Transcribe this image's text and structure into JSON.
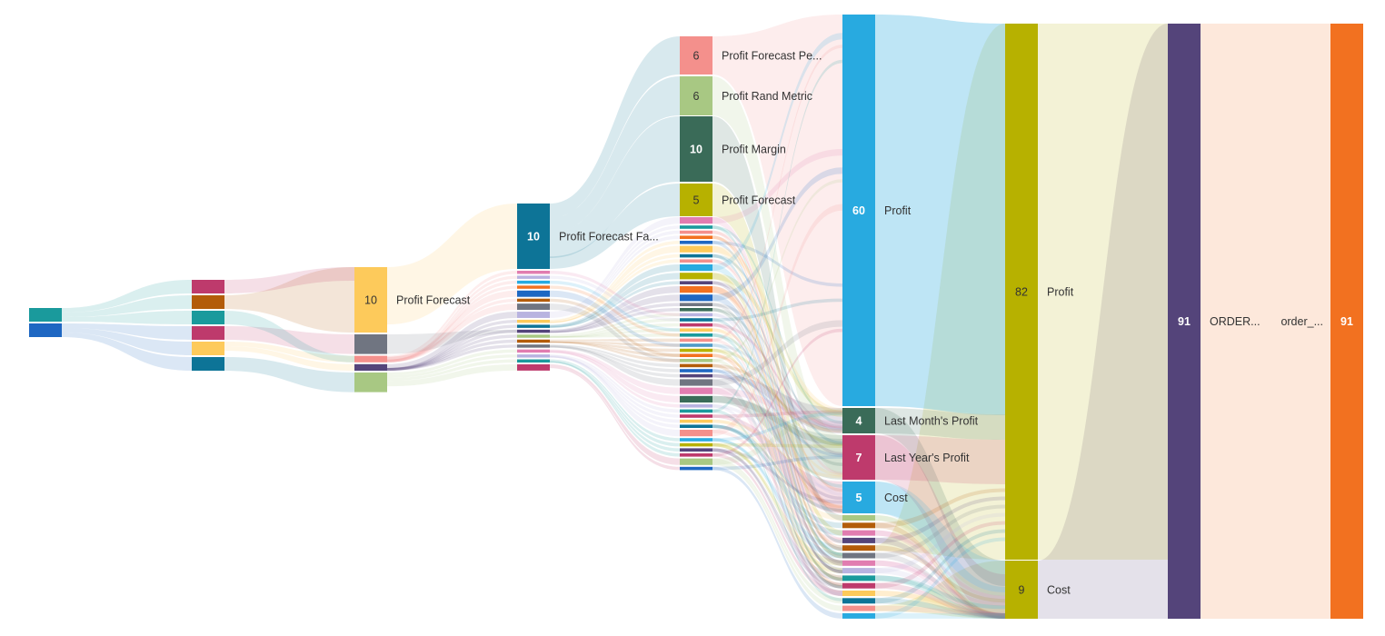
{
  "chart_data": {
    "type": "sankey",
    "title": "",
    "colors": [
      "#1a9a9c",
      "#1e67c2",
      "#be3a6c",
      "#b35c0a",
      "#fdca5b",
      "#0d7497",
      "#707581",
      "#f4908c",
      "#54447a",
      "#a8c883",
      "#e17db0",
      "#28aae0",
      "#f27120",
      "#b8b3e0",
      "#3a6b58",
      "#b7b100",
      "#4e9ac7",
      "#d4a373"
    ],
    "columns": [
      {
        "nodes": [
          {
            "name": "",
            "value": 3,
            "color": "#1a9a9c"
          },
          {
            "name": "",
            "value": 3,
            "color": "#1e67c2"
          }
        ]
      },
      {
        "nodes": [
          {
            "name": "",
            "value": 3,
            "color": "#be3a6c"
          },
          {
            "name": "",
            "value": 3,
            "color": "#b35c0a"
          },
          {
            "name": "",
            "value": 3,
            "color": "#1a9a9c"
          },
          {
            "name": "",
            "value": 3,
            "color": "#be3a6c"
          },
          {
            "name": "",
            "value": 3,
            "color": "#fdca5b"
          },
          {
            "name": "",
            "value": 3,
            "color": "#0d7497"
          }
        ]
      },
      {
        "nodes": [
          {
            "name": "Profit Forecast",
            "value": 10,
            "color": "#fdca5b",
            "labeled": true,
            "darkText": true
          },
          {
            "name": "",
            "value": 3,
            "color": "#707581"
          },
          {
            "name": "",
            "value": 1,
            "color": "#f4908c"
          },
          {
            "name": "",
            "value": 1,
            "color": "#54447a"
          },
          {
            "name": "",
            "value": 3,
            "color": "#a8c883"
          }
        ]
      },
      {
        "nodes": [
          {
            "name": "Profit Forecast Fa...",
            "value": 10,
            "color": "#0d7497",
            "labeled": true
          },
          {
            "name": "",
            "value": 1,
            "color": "#e17db0"
          },
          {
            "name": "",
            "value": 1,
            "color": "#b8b3e0"
          },
          {
            "name": "",
            "value": 1,
            "color": "#28aae0"
          },
          {
            "name": "",
            "value": 1,
            "color": "#f27120"
          },
          {
            "name": "",
            "value": 2,
            "color": "#1e67c2"
          },
          {
            "name": "",
            "value": 1,
            "color": "#b35c0a"
          },
          {
            "name": "",
            "value": 2,
            "color": "#707581"
          },
          {
            "name": "",
            "value": 2,
            "color": "#b8b3e0"
          },
          {
            "name": "",
            "value": 1,
            "color": "#fdca5b"
          },
          {
            "name": "",
            "value": 1,
            "color": "#0d7497"
          },
          {
            "name": "",
            "value": 1,
            "color": "#54447a"
          },
          {
            "name": "",
            "value": 1,
            "color": "#a8c883"
          },
          {
            "name": "",
            "value": 1,
            "color": "#b35c0a"
          },
          {
            "name": "",
            "value": 1,
            "color": "#707581"
          },
          {
            "name": "",
            "value": 1,
            "color": "#e17db0"
          },
          {
            "name": "",
            "value": 1,
            "color": "#b8b3e0"
          },
          {
            "name": "",
            "value": 1,
            "color": "#1a9a9c"
          },
          {
            "name": "",
            "value": 2,
            "color": "#be3a6c"
          }
        ]
      },
      {
        "nodes": [
          {
            "name": "Profit Forecast Pe...",
            "value": 6,
            "color": "#f4908c",
            "labeled": true,
            "darkText": true
          },
          {
            "name": "Profit Rand Metric",
            "value": 6,
            "color": "#a8c883",
            "labeled": true,
            "darkText": true
          },
          {
            "name": "Profit Margin",
            "value": 10,
            "color": "#3a6b58",
            "labeled": true
          },
          {
            "name": "Profit Forecast",
            "value": 5,
            "color": "#b7b100",
            "labeled": true,
            "darkText": true
          },
          {
            "name": "",
            "value": 2,
            "color": "#e17db0"
          },
          {
            "name": "",
            "value": 1,
            "color": "#1a9a9c"
          },
          {
            "name": "",
            "value": 1,
            "color": "#f4908c"
          },
          {
            "name": "",
            "value": 1,
            "color": "#f27120"
          },
          {
            "name": "",
            "value": 1,
            "color": "#1e67c2"
          },
          {
            "name": "",
            "value": 2,
            "color": "#fdca5b"
          },
          {
            "name": "",
            "value": 1,
            "color": "#0d7497"
          },
          {
            "name": "",
            "value": 1,
            "color": "#f4908c"
          },
          {
            "name": "",
            "value": 2,
            "color": "#28aae0"
          },
          {
            "name": "",
            "value": 2,
            "color": "#b7b100"
          },
          {
            "name": "",
            "value": 1,
            "color": "#54447a"
          },
          {
            "name": "",
            "value": 2,
            "color": "#f27120"
          },
          {
            "name": "",
            "value": 2,
            "color": "#1e67c2"
          },
          {
            "name": "",
            "value": 1,
            "color": "#707581"
          },
          {
            "name": "",
            "value": 1,
            "color": "#3a6b58"
          },
          {
            "name": "",
            "value": 1,
            "color": "#b8b3e0"
          },
          {
            "name": "",
            "value": 1,
            "color": "#0d7497"
          },
          {
            "name": "",
            "value": 1,
            "color": "#be3a6c"
          },
          {
            "name": "",
            "value": 1,
            "color": "#fdca5b"
          },
          {
            "name": "",
            "value": 1,
            "color": "#1a9a9c"
          },
          {
            "name": "",
            "value": 1,
            "color": "#f4908c"
          },
          {
            "name": "",
            "value": 1,
            "color": "#4e9ac7"
          },
          {
            "name": "",
            "value": 1,
            "color": "#b7b100"
          },
          {
            "name": "",
            "value": 1,
            "color": "#f27120"
          },
          {
            "name": "",
            "value": 1,
            "color": "#a8c883"
          },
          {
            "name": "",
            "value": 1,
            "color": "#b35c0a"
          },
          {
            "name": "",
            "value": 1,
            "color": "#1e67c2"
          },
          {
            "name": "",
            "value": 1,
            "color": "#54447a"
          },
          {
            "name": "",
            "value": 2,
            "color": "#707581"
          },
          {
            "name": "",
            "value": 2,
            "color": "#e17db0"
          },
          {
            "name": "",
            "value": 2,
            "color": "#3a6b58"
          },
          {
            "name": "",
            "value": 1,
            "color": "#b8b3e0"
          },
          {
            "name": "",
            "value": 1,
            "color": "#1a9a9c"
          },
          {
            "name": "",
            "value": 1,
            "color": "#be3a6c"
          },
          {
            "name": "",
            "value": 1,
            "color": "#fdca5b"
          },
          {
            "name": "",
            "value": 1,
            "color": "#0d7497"
          },
          {
            "name": "",
            "value": 2,
            "color": "#f4908c"
          },
          {
            "name": "",
            "value": 1,
            "color": "#28aae0"
          },
          {
            "name": "",
            "value": 1,
            "color": "#b7b100"
          },
          {
            "name": "",
            "value": 1,
            "color": "#54447a"
          },
          {
            "name": "",
            "value": 1,
            "color": "#be3a6c"
          },
          {
            "name": "",
            "value": 2,
            "color": "#a8c883"
          },
          {
            "name": "",
            "value": 1,
            "color": "#1e67c2"
          }
        ]
      },
      {
        "nodes": [
          {
            "name": "Profit",
            "value": 60,
            "color": "#28aae0",
            "labeled": true
          },
          {
            "name": "Last Month's Profit",
            "value": 4,
            "color": "#3a6b58",
            "labeled": true
          },
          {
            "name": "Last Year's Profit",
            "value": 7,
            "color": "#be3a6c",
            "labeled": true
          },
          {
            "name": "Cost",
            "value": 5,
            "color": "#28aae0",
            "labeled": true
          },
          {
            "name": "",
            "value": 1,
            "color": "#a8c883"
          },
          {
            "name": "",
            "value": 1,
            "color": "#b35c0a"
          },
          {
            "name": "",
            "value": 1,
            "color": "#e17db0"
          },
          {
            "name": "",
            "value": 1,
            "color": "#54447a"
          },
          {
            "name": "",
            "value": 1,
            "color": "#b35c0a"
          },
          {
            "name": "",
            "value": 1,
            "color": "#707581"
          },
          {
            "name": "",
            "value": 1,
            "color": "#e17db0"
          },
          {
            "name": "",
            "value": 1,
            "color": "#b8b3e0"
          },
          {
            "name": "",
            "value": 1,
            "color": "#1a9a9c"
          },
          {
            "name": "",
            "value": 1,
            "color": "#be3a6c"
          },
          {
            "name": "",
            "value": 1,
            "color": "#fdca5b"
          },
          {
            "name": "",
            "value": 1,
            "color": "#0d7497"
          },
          {
            "name": "",
            "value": 1,
            "color": "#f4908c"
          },
          {
            "name": "",
            "value": 1,
            "color": "#28aae0"
          }
        ]
      },
      {
        "nodes": [
          {
            "name": "Profit",
            "value": 82,
            "color": "#b7b100",
            "labeled": true,
            "darkText": true
          },
          {
            "name": "Cost",
            "value": 9,
            "color": "#b7b100",
            "labeled": true,
            "darkText": true
          }
        ]
      },
      {
        "nodes": [
          {
            "name": "ORDER...",
            "value": 91,
            "color": "#54447a",
            "labeled": true
          }
        ]
      },
      {
        "nodes": [
          {
            "name": "order_...",
            "value": 91,
            "color": "#f27120",
            "labeled": true,
            "labelLeft": true
          }
        ]
      }
    ]
  }
}
